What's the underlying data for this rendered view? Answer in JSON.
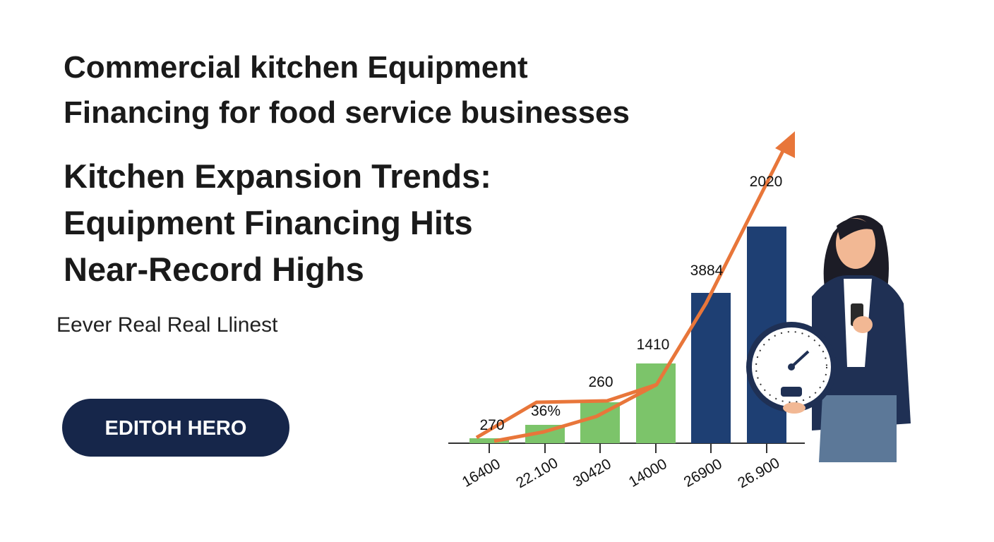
{
  "header": {
    "title_lines": [
      "Commercial kitchen Equipment",
      "Financing for food service businesses"
    ]
  },
  "headline": {
    "lines": [
      "Kitchen Expansion Trends:",
      "Equipment Financing Hits",
      "Near-Record Highs"
    ]
  },
  "subtitle": "Eever Real Real Llinest",
  "button": {
    "label": "EDITOH HERO"
  },
  "chart_data": {
    "type": "bar",
    "categories": [
      "16400",
      "22.100",
      "30420",
      "14000",
      "26900",
      "26.900"
    ],
    "values": [
      7,
      26,
      58,
      113,
      213,
      307
    ],
    "colors": [
      "#7cc46a",
      "#7cc46a",
      "#7cc46a",
      "#7cc46a",
      "#1e3f73",
      "#1e3f73"
    ],
    "ylim": [
      0,
      307
    ],
    "annotations": [
      "270",
      "36%",
      "260",
      "1410",
      "3884",
      "2020"
    ]
  }
}
